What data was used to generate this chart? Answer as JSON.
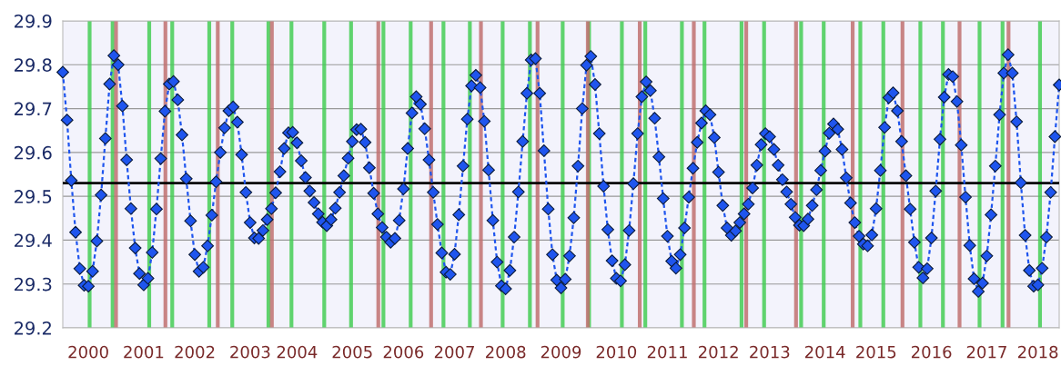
{
  "chart_data": {
    "type": "line",
    "categories": [
      null,
      null,
      null,
      null,
      null,
      null,
      "2000",
      null,
      null,
      null,
      null,
      null,
      null,
      null,
      null,
      null,
      null,
      null,
      null,
      "2001",
      null,
      null,
      null,
      null,
      null,
      null,
      null,
      null,
      null,
      null,
      null,
      "2002",
      null,
      null,
      null,
      null,
      null,
      null,
      null,
      null,
      null,
      null,
      null,
      null,
      "2003",
      null,
      null,
      null,
      null,
      null,
      null,
      null,
      null,
      null,
      null,
      "2004",
      null,
      null,
      null,
      null,
      null,
      null,
      null,
      null,
      null,
      null,
      null,
      null,
      "2005",
      null,
      null,
      null,
      null,
      null,
      null,
      null,
      null,
      null,
      null,
      null,
      "2006",
      null,
      null,
      null,
      null,
      null,
      null,
      null,
      null,
      null,
      null,
      null,
      "2007",
      null,
      null,
      null,
      null,
      null,
      null,
      null,
      null,
      null,
      null,
      null,
      "2008",
      null,
      null,
      null,
      null,
      null,
      null,
      null,
      null,
      null,
      null,
      null,
      null,
      "2009",
      null,
      null,
      null,
      null,
      null,
      null,
      null,
      null,
      null,
      null,
      null,
      null,
      "2010",
      null,
      null,
      null,
      null,
      null,
      null,
      null,
      null,
      null,
      null,
      null,
      "2011",
      null,
      null,
      null,
      null,
      null,
      null,
      null,
      null,
      null,
      null,
      null,
      "2012",
      null,
      null,
      null,
      null,
      null,
      null,
      null,
      null,
      null,
      null,
      null,
      "2013",
      null,
      null,
      null,
      null,
      null,
      null,
      null,
      null,
      null,
      null,
      null,
      null,
      "2014",
      null,
      null,
      null,
      null,
      null,
      null,
      null,
      null,
      null,
      null,
      null,
      "2015",
      null,
      null,
      null,
      null,
      null,
      null,
      null,
      null,
      null,
      null,
      null,
      null,
      "2016",
      null,
      null,
      null,
      null,
      null,
      null,
      null,
      null,
      null,
      null,
      null,
      null,
      "2017",
      null,
      null,
      null,
      null,
      null,
      null,
      null,
      null,
      null,
      null,
      null,
      "2018",
      null,
      null,
      null,
      null,
      null
    ],
    "series": [
      {
        "color": "#1f55ee",
        "values": [
          29.783,
          29.674,
          29.536,
          29.418,
          29.335,
          29.297,
          29.295,
          29.329,
          29.398,
          29.503,
          29.632,
          29.756,
          29.821,
          29.8,
          29.706,
          29.583,
          29.472,
          29.382,
          29.324,
          29.298,
          29.313,
          29.372,
          29.471,
          29.586,
          29.694,
          29.756,
          29.762,
          29.72,
          29.64,
          29.54,
          29.444,
          29.367,
          29.329,
          29.338,
          29.387,
          29.457,
          29.533,
          29.6,
          29.656,
          29.695,
          29.704,
          29.669,
          29.595,
          29.509,
          29.44,
          29.405,
          29.404,
          29.422,
          29.447,
          29.472,
          29.508,
          29.556,
          29.609,
          29.645,
          29.646,
          29.622,
          29.581,
          29.543,
          29.512,
          29.486,
          29.46,
          29.441,
          29.433,
          29.447,
          29.473,
          29.509,
          29.547,
          29.587,
          29.625,
          29.652,
          29.653,
          29.623,
          29.565,
          29.507,
          29.46,
          29.429,
          29.407,
          29.395,
          29.404,
          29.445,
          29.517,
          29.609,
          29.69,
          29.727,
          29.71,
          29.654,
          29.583,
          29.509,
          29.436,
          29.371,
          29.327,
          29.322,
          29.368,
          29.458,
          29.569,
          29.676,
          29.752,
          29.776,
          29.748,
          29.671,
          29.56,
          29.445,
          29.35,
          29.296,
          29.289,
          29.331,
          29.407,
          29.51,
          29.625,
          29.735,
          29.811,
          29.814,
          29.735,
          29.604,
          29.471,
          29.367,
          29.309,
          29.291,
          29.311,
          29.364,
          29.451,
          29.569,
          29.7,
          29.799,
          29.819,
          29.755,
          29.643,
          29.523,
          29.424,
          29.353,
          29.313,
          29.307,
          29.344,
          29.422,
          29.529,
          29.643,
          29.727,
          29.761,
          29.741,
          29.678,
          29.59,
          29.495,
          29.409,
          29.352,
          29.336,
          29.367,
          29.428,
          29.498,
          29.564,
          29.623,
          29.667,
          29.695,
          29.686,
          29.634,
          29.555,
          29.479,
          29.428,
          29.411,
          29.421,
          29.44,
          29.46,
          29.482,
          29.519,
          29.571,
          29.618,
          29.643,
          29.636,
          29.607,
          29.571,
          29.538,
          29.51,
          29.482,
          29.452,
          29.434,
          29.433,
          29.448,
          29.479,
          29.515,
          29.559,
          29.603,
          29.644,
          29.665,
          29.653,
          29.607,
          29.542,
          29.485,
          29.44,
          29.409,
          29.391,
          29.387,
          29.412,
          29.472,
          29.559,
          29.657,
          29.725,
          29.736,
          29.695,
          29.625,
          29.547,
          29.471,
          29.395,
          29.338,
          29.314,
          29.335,
          29.405,
          29.512,
          29.63,
          29.726,
          29.778,
          29.773,
          29.716,
          29.617,
          29.498,
          29.388,
          29.312,
          29.283,
          29.302,
          29.364,
          29.458,
          29.569,
          29.686,
          29.781,
          29.823,
          29.781,
          29.67,
          29.531,
          29.411,
          29.331,
          29.295,
          29.298,
          29.336,
          29.407,
          29.509,
          29.636,
          29.754
        ]
      }
    ],
    "ylim": [
      29.2,
      29.9
    ],
    "yticks": [
      29.2,
      29.3,
      29.4,
      29.5,
      29.6,
      29.7,
      29.8,
      29.9
    ],
    "grid": "y",
    "marker": "diamond",
    "line_style": "dashed",
    "ref_lines": [
      {
        "axis": "y",
        "value": 29.53,
        "color": "#000000"
      }
    ]
  }
}
